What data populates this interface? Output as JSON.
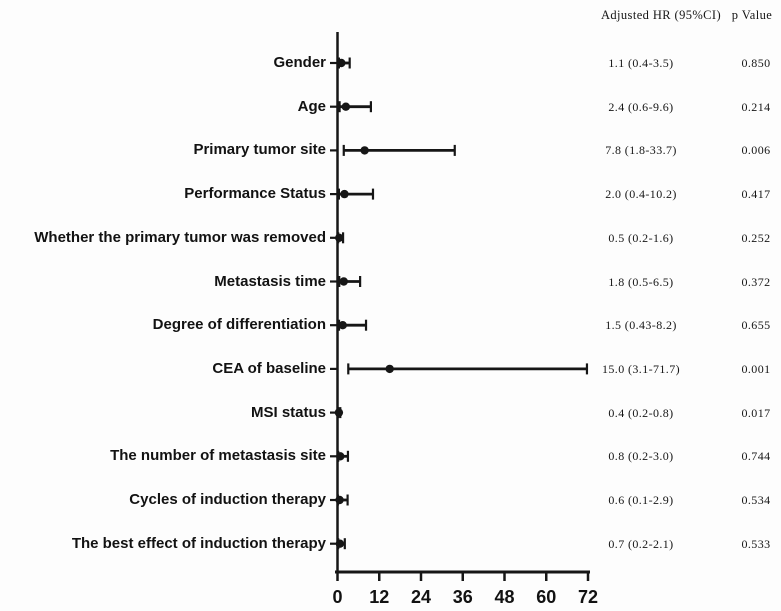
{
  "figure": {
    "background": "#fdfdfd",
    "ink": "#161616"
  },
  "chart_data": {
    "type": "forest",
    "title": "",
    "header": {
      "hr_label": "Adjusted HR (95%CI)",
      "p_label": "p Value"
    },
    "xlabel": "",
    "xlim": [
      0,
      72
    ],
    "xticks": [
      0,
      12,
      24,
      36,
      48,
      60,
      72
    ],
    "grid": false,
    "reference_line_x": 0,
    "rows": [
      {
        "label": "Gender",
        "est": 1.1,
        "lo": 0.4,
        "hi": 3.5,
        "hr_ci_text": "1.1 (0.4-3.5)",
        "p_value": "0.850"
      },
      {
        "label": "Age",
        "est": 2.4,
        "lo": 0.6,
        "hi": 9.6,
        "hr_ci_text": "2.4 (0.6-9.6)",
        "p_value": "0.214"
      },
      {
        "label": "Primary tumor site",
        "est": 7.8,
        "lo": 1.8,
        "hi": 33.7,
        "hr_ci_text": "7.8 (1.8-33.7)",
        "p_value": "0.006"
      },
      {
        "label": "Performance Status",
        "est": 2.0,
        "lo": 0.4,
        "hi": 10.2,
        "hr_ci_text": "2.0 (0.4-10.2)",
        "p_value": "0.417"
      },
      {
        "label": "Whether the primary tumor was removed",
        "est": 0.5,
        "lo": 0.2,
        "hi": 1.6,
        "hr_ci_text": "0.5 (0.2-1.6)",
        "p_value": "0.252"
      },
      {
        "label": "Metastasis time",
        "est": 1.8,
        "lo": 0.5,
        "hi": 6.5,
        "hr_ci_text": "1.8 (0.5-6.5)",
        "p_value": "0.372"
      },
      {
        "label": "Degree of differentiation",
        "est": 1.5,
        "lo": 0.43,
        "hi": 8.2,
        "hr_ci_text": "1.5 (0.43-8.2)",
        "p_value": "0.655"
      },
      {
        "label": "CEA of baseline",
        "est": 15.0,
        "lo": 3.1,
        "hi": 71.7,
        "hr_ci_text": "15.0 (3.1-71.7)",
        "p_value": "0.001"
      },
      {
        "label": "MSI status",
        "est": 0.4,
        "lo": 0.2,
        "hi": 0.8,
        "hr_ci_text": "0.4 (0.2-0.8)",
        "p_value": "0.017"
      },
      {
        "label": "The number of metastasis site",
        "est": 0.8,
        "lo": 0.2,
        "hi": 3.0,
        "hr_ci_text": "0.8 (0.2-3.0)",
        "p_value": "0.744"
      },
      {
        "label": "Cycles of induction therapy",
        "est": 0.6,
        "lo": 0.1,
        "hi": 2.9,
        "hr_ci_text": "0.6 (0.1-2.9)",
        "p_value": "0.534"
      },
      {
        "label": "The best effect of induction therapy",
        "est": 0.7,
        "lo": 0.2,
        "hi": 2.1,
        "hr_ci_text": "0.7 (0.2-2.1)",
        "p_value": "0.533"
      }
    ]
  }
}
